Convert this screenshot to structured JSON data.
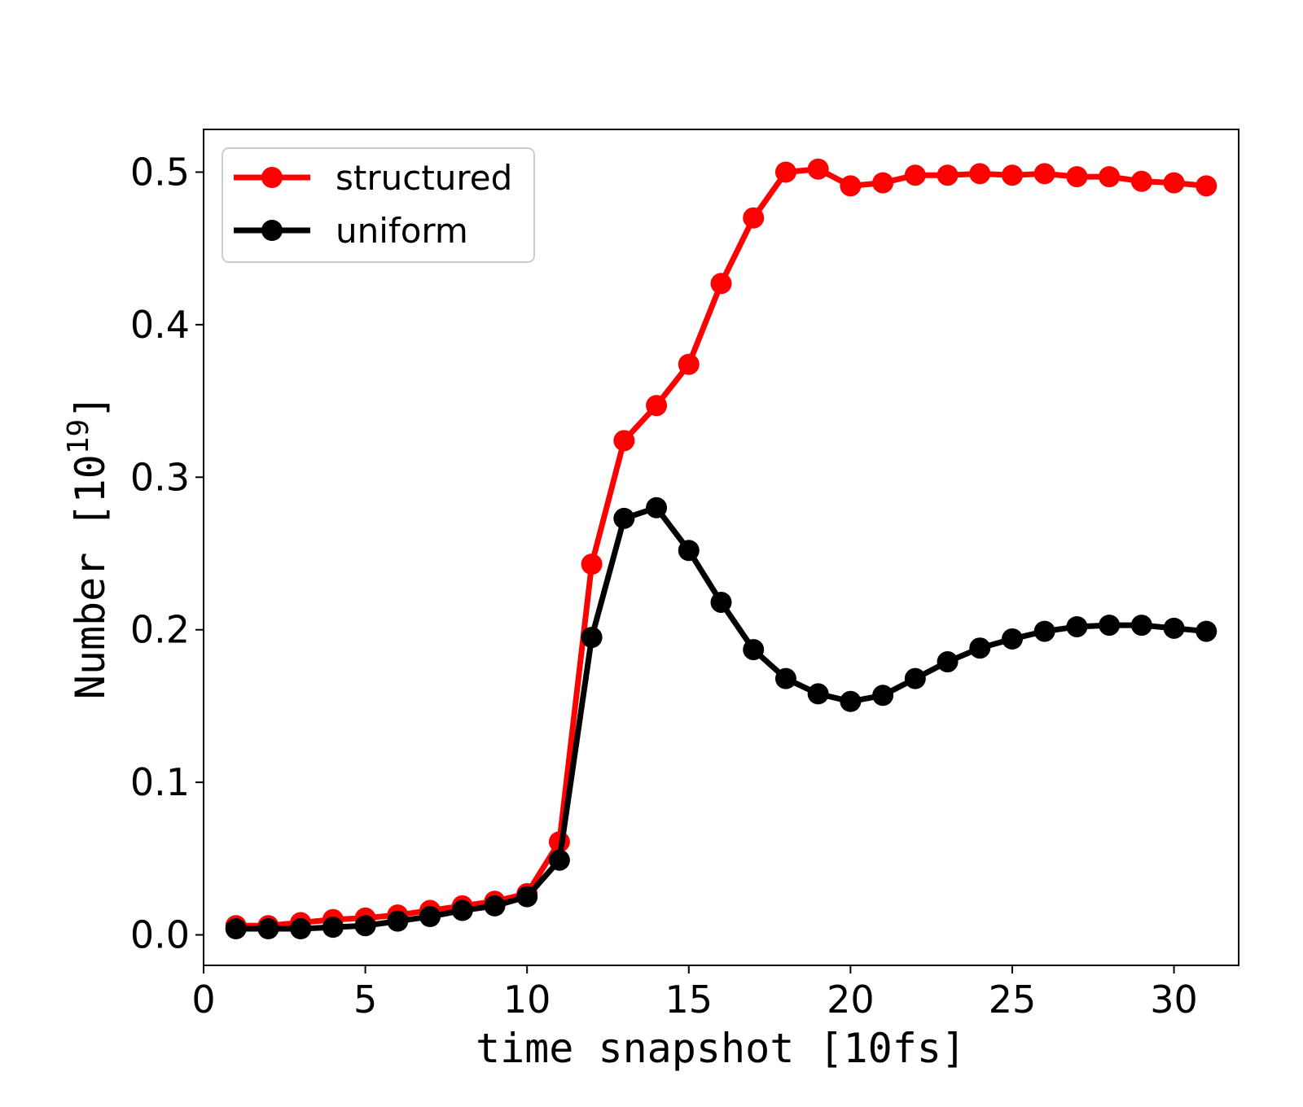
{
  "chart_data": {
    "type": "line",
    "title": "",
    "xlabel": "time snapshot [10fs]",
    "ylabel_base": "Number [10",
    "ylabel_exp": "19",
    "ylabel_close": "]",
    "xlim": [
      0,
      32
    ],
    "ylim": [
      -0.02,
      0.528
    ],
    "xticks": [
      0,
      5,
      10,
      15,
      20,
      25,
      30
    ],
    "xtick_labels": [
      "0",
      "5",
      "10",
      "15",
      "20",
      "25",
      "30"
    ],
    "yticks": [
      0.0,
      0.1,
      0.2,
      0.3,
      0.4,
      0.5
    ],
    "ytick_labels": [
      "0.0",
      "0.1",
      "0.2",
      "0.3",
      "0.4",
      "0.5"
    ],
    "grid": false,
    "legend_position": "top-left",
    "x": [
      1,
      2,
      3,
      4,
      5,
      6,
      7,
      8,
      9,
      10,
      11,
      12,
      13,
      14,
      15,
      16,
      17,
      18,
      19,
      20,
      21,
      22,
      23,
      24,
      25,
      26,
      27,
      28,
      29,
      30,
      31
    ],
    "series": [
      {
        "name": "structured",
        "color": "#ff0000",
        "values": [
          0.006,
          0.006,
          0.008,
          0.01,
          0.011,
          0.013,
          0.016,
          0.019,
          0.022,
          0.027,
          0.061,
          0.243,
          0.324,
          0.347,
          0.374,
          0.427,
          0.47,
          0.5,
          0.502,
          0.491,
          0.493,
          0.498,
          0.498,
          0.499,
          0.498,
          0.499,
          0.497,
          0.497,
          0.494,
          0.493,
          0.491
        ]
      },
      {
        "name": "uniform",
        "color": "#000000",
        "values": [
          0.004,
          0.004,
          0.004,
          0.005,
          0.006,
          0.009,
          0.012,
          0.016,
          0.019,
          0.025,
          0.049,
          0.195,
          0.273,
          0.28,
          0.252,
          0.218,
          0.187,
          0.168,
          0.158,
          0.153,
          0.157,
          0.168,
          0.179,
          0.188,
          0.194,
          0.199,
          0.202,
          0.203,
          0.203,
          0.201,
          0.199
        ]
      }
    ]
  }
}
